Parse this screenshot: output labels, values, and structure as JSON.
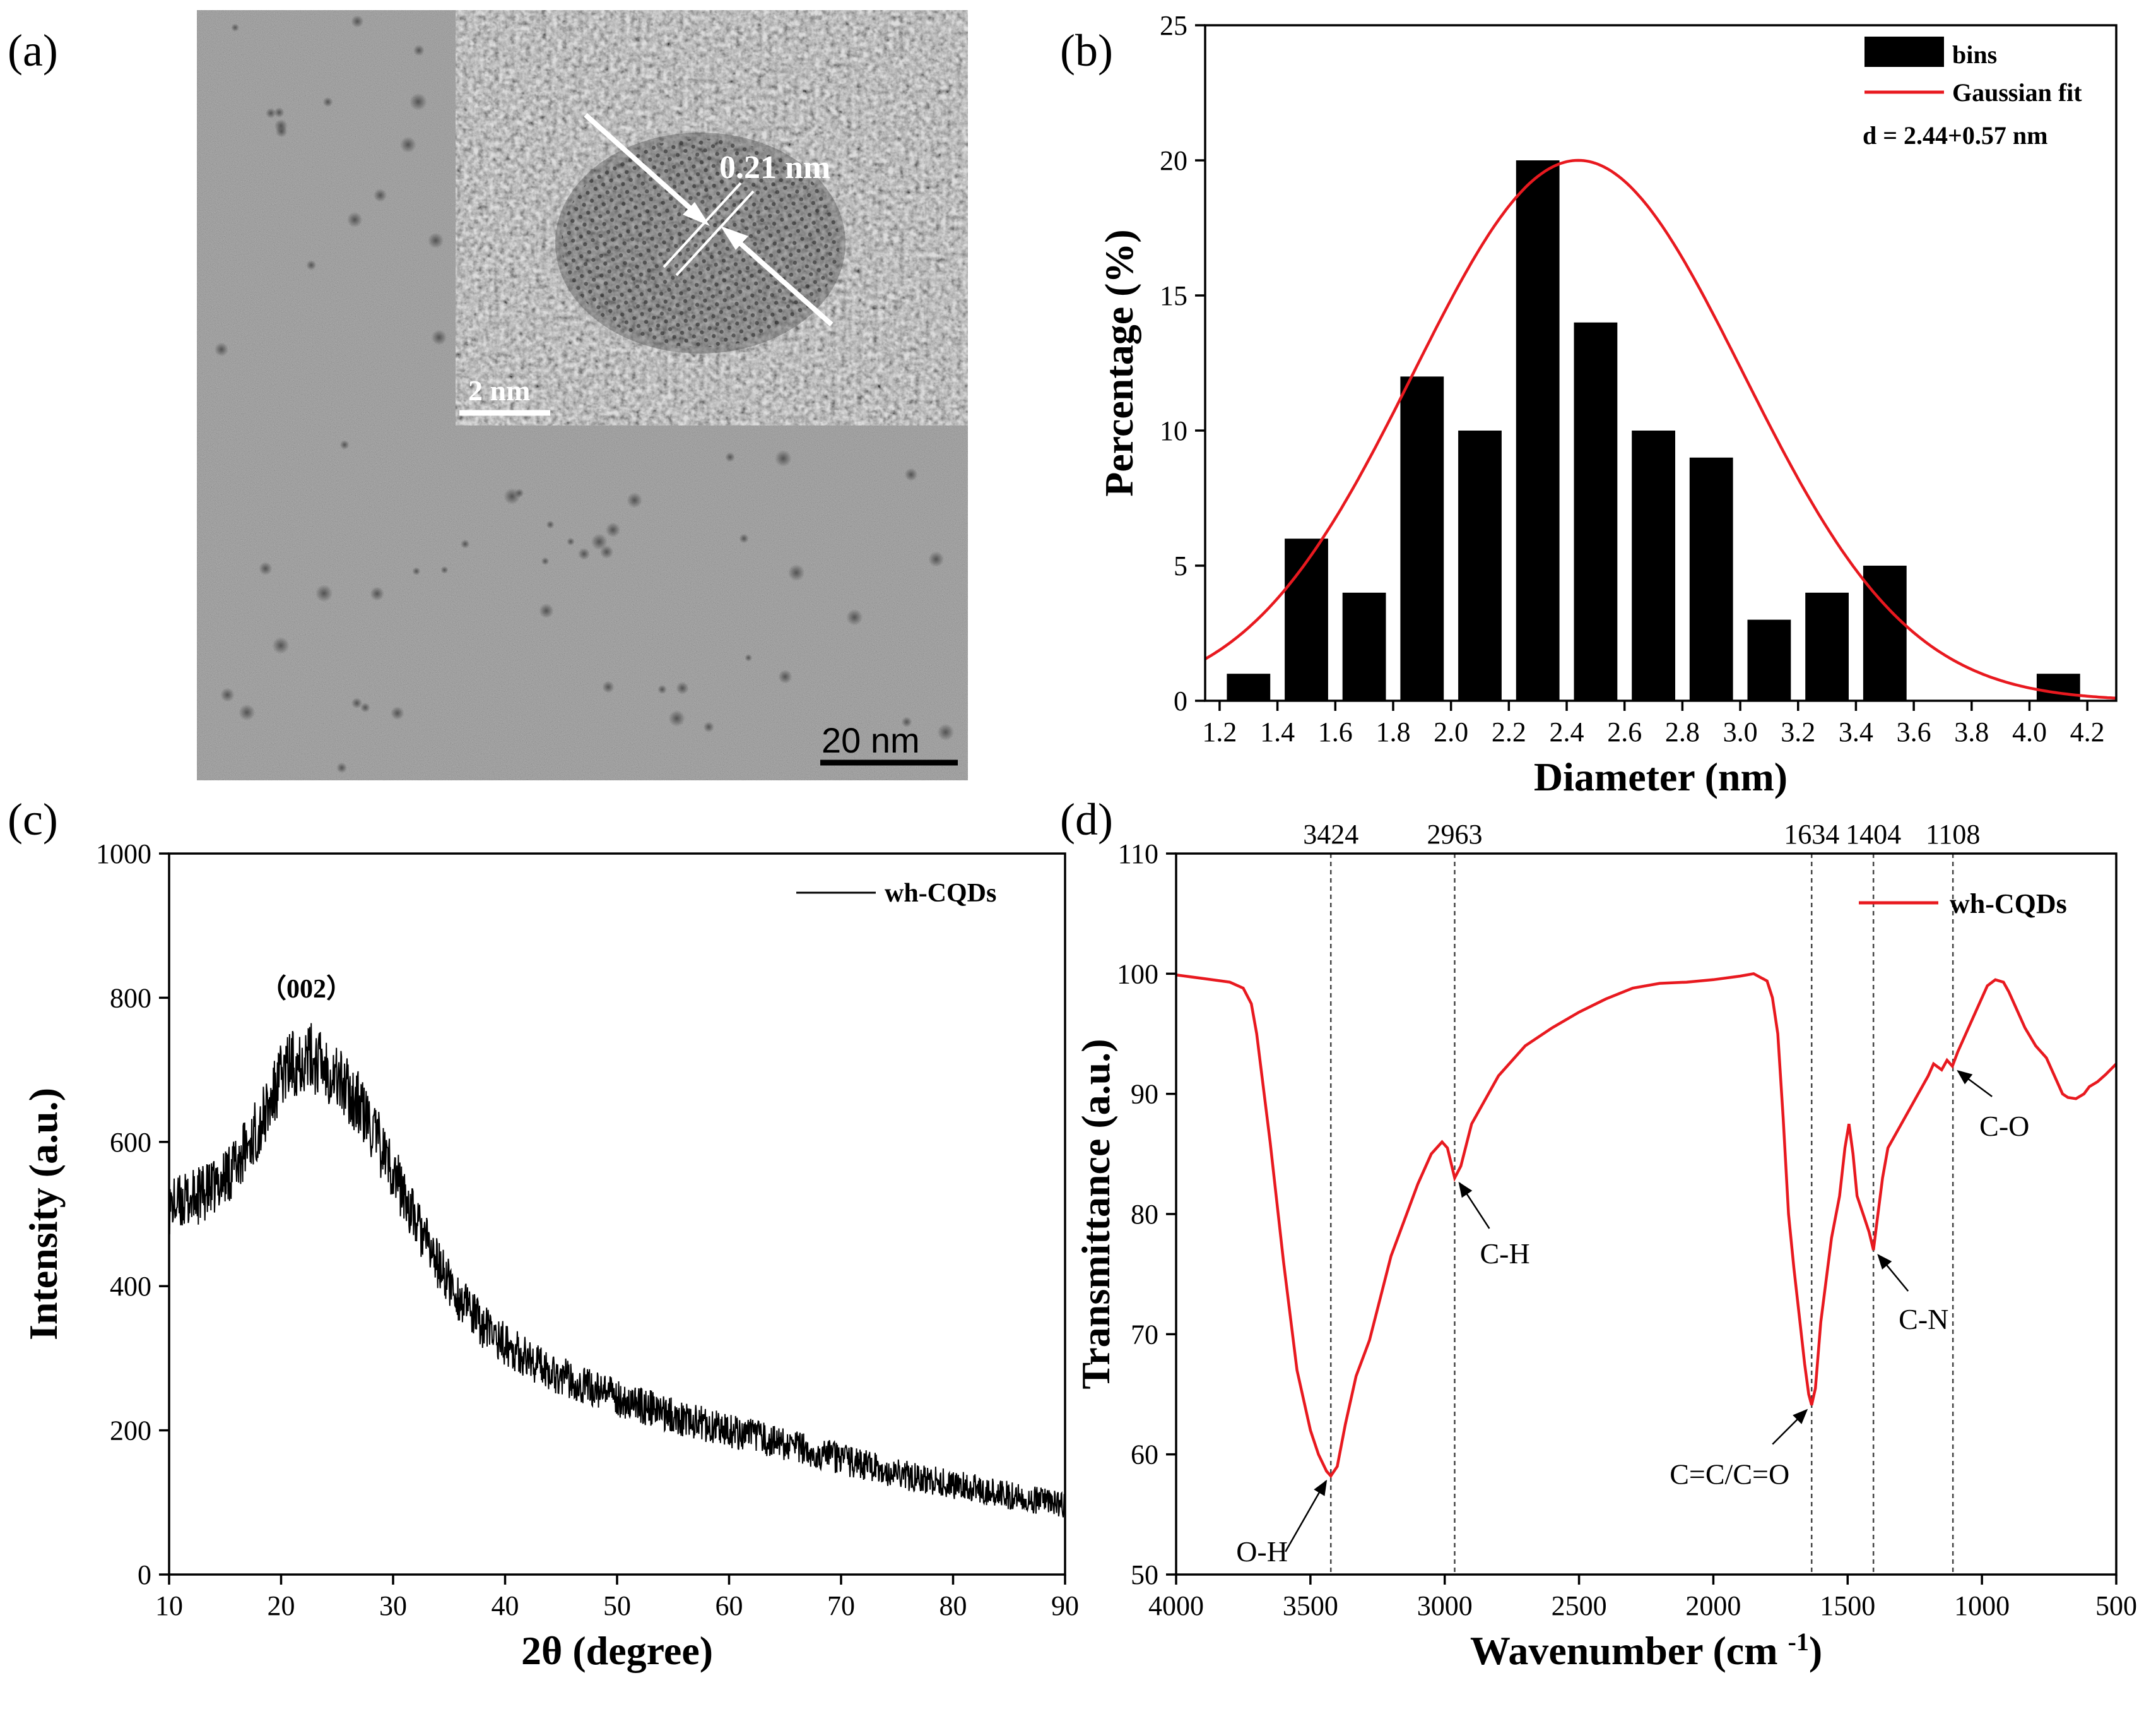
{
  "figure": {
    "panel_labels": [
      "(a)",
      "(b)",
      "(c)",
      "(d)"
    ]
  },
  "panel_a": {
    "inset_spacing_label": "0.21 nm",
    "inset_scale_label": "2  nm",
    "scale_label": "20 nm"
  },
  "colors": {
    "red": "#e8191f",
    "black": "#000000"
  },
  "chart_data": [
    {
      "panel": "b",
      "type": "bar",
      "title": "",
      "xlabel": "Diameter (nm)",
      "ylabel": "Percentage (%)",
      "xlim": [
        1.15,
        4.3
      ],
      "ylim": [
        0,
        25
      ],
      "xticks": [
        "1.2",
        "1.4",
        "1.6",
        "1.8",
        "2.0",
        "2.2",
        "2.4",
        "2.6",
        "2.8",
        "3.0",
        "3.2",
        "3.4",
        "3.6",
        "3.8",
        "4.0",
        "4.2"
      ],
      "yticks": [
        "0",
        "5",
        "10",
        "15",
        "20",
        "25"
      ],
      "bar_width": 0.15,
      "centers": [
        1.3,
        1.5,
        1.7,
        1.9,
        2.1,
        2.3,
        2.5,
        2.7,
        2.9,
        3.1,
        3.3,
        3.5,
        4.1
      ],
      "values": [
        1,
        6,
        4,
        12,
        10,
        20,
        14,
        10,
        9,
        3,
        4,
        5,
        1
      ],
      "fit": {
        "type": "gaussian",
        "mean": 2.44,
        "sigma": 0.57,
        "amplitude": 20
      },
      "legend": {
        "bars_label": "bins",
        "fit_label": "Gaussian fit",
        "note": "d = 2.44+0.57 nm",
        "position": "top-right"
      }
    },
    {
      "panel": "c",
      "type": "line",
      "title": "",
      "xlabel": "2θ (degree)",
      "ylabel": "Intensity (a.u.)",
      "xlim": [
        10,
        90
      ],
      "ylim": [
        0,
        1000
      ],
      "xticks": [
        "10",
        "20",
        "30",
        "40",
        "50",
        "60",
        "70",
        "80",
        "90"
      ],
      "yticks": [
        "0",
        "200",
        "400",
        "600",
        "800",
        "1000"
      ],
      "series": [
        {
          "name": "wh-CQDs",
          "x": [
            10,
            12,
            14,
            16,
            18,
            19,
            20,
            21,
            22,
            23,
            24,
            25,
            26,
            27,
            28,
            30,
            32,
            34,
            36,
            38,
            40,
            42,
            45,
            50,
            55,
            60,
            65,
            70,
            75,
            80,
            85,
            90
          ],
          "y": [
            510,
            520,
            535,
            570,
            620,
            650,
            690,
            710,
            718,
            715,
            705,
            690,
            670,
            650,
            620,
            560,
            490,
            430,
            380,
            345,
            320,
            300,
            275,
            245,
            220,
            200,
            180,
            160,
            140,
            125,
            110,
            95
          ]
        }
      ],
      "annotations": [
        {
          "text": "（002）",
          "x": 22,
          "y": 780
        }
      ],
      "legend": {
        "position": "top-right"
      }
    },
    {
      "panel": "d",
      "type": "line",
      "title": "",
      "xlabel": "Wavenumber (cm",
      "xlabel_sup": "-1",
      "xlabel_end": ")",
      "ylabel": "Transmittance (a.u.)",
      "xlim": [
        4000,
        500
      ],
      "ylim": [
        50,
        110
      ],
      "xticks": [
        "4000",
        "3500",
        "3000",
        "2500",
        "2000",
        "1500",
        "1000",
        "500"
      ],
      "yticks": [
        "50",
        "60",
        "70",
        "80",
        "90",
        "100",
        "110"
      ],
      "series": [
        {
          "name": "wh-CQDs",
          "x": [
            4000,
            3900,
            3800,
            3750,
            3720,
            3700,
            3650,
            3600,
            3550,
            3500,
            3470,
            3440,
            3424,
            3400,
            3370,
            3330,
            3280,
            3200,
            3100,
            3050,
            3010,
            2990,
            2963,
            2940,
            2900,
            2850,
            2800,
            2700,
            2600,
            2500,
            2400,
            2300,
            2200,
            2100,
            2000,
            1900,
            1850,
            1800,
            1780,
            1760,
            1740,
            1720,
            1700,
            1680,
            1660,
            1645,
            1634,
            1620,
            1600,
            1560,
            1530,
            1510,
            1495,
            1480,
            1465,
            1450,
            1435,
            1420,
            1404,
            1390,
            1370,
            1350,
            1300,
            1250,
            1200,
            1180,
            1150,
            1130,
            1110,
            1090,
            1060,
            1020,
            980,
            950,
            920,
            900,
            870,
            840,
            800,
            760,
            720,
            700,
            680,
            650,
            620,
            600,
            570,
            540,
            500
          ],
          "y": [
            99.9,
            99.6,
            99.3,
            98.8,
            97.5,
            95.0,
            86.0,
            76.0,
            67.0,
            62.0,
            60.0,
            58.6,
            58.2,
            59.0,
            62.5,
            66.5,
            69.5,
            76.5,
            82.5,
            85.0,
            86.0,
            85.5,
            83.0,
            84.0,
            87.5,
            89.5,
            91.5,
            94.0,
            95.5,
            96.8,
            97.9,
            98.8,
            99.2,
            99.3,
            99.5,
            99.8,
            100.0,
            99.4,
            98.0,
            95.0,
            88.0,
            80.0,
            75.5,
            71.5,
            67.5,
            65.0,
            64.1,
            65.5,
            71.0,
            78.0,
            81.5,
            85.5,
            87.5,
            85.0,
            81.5,
            80.5,
            79.5,
            78.5,
            77.0,
            79.5,
            83.0,
            85.5,
            87.5,
            89.5,
            91.5,
            92.5,
            92.0,
            92.8,
            92.3,
            93.5,
            95.0,
            97.0,
            99.0,
            99.5,
            99.3,
            98.5,
            97.0,
            95.5,
            94.0,
            93.0,
            91.0,
            90.0,
            89.7,
            89.6,
            90.0,
            90.6,
            91.0,
            91.6,
            92.5
          ]
        }
      ],
      "reference_lines": [
        3424,
        2963,
        1634,
        1404,
        1108
      ],
      "reference_labels": [
        "3424",
        "2963",
        "1634",
        "1404",
        "1108"
      ],
      "annotations": [
        {
          "text": "O-H",
          "x": 3424,
          "y": 58.2
        },
        {
          "text": "C-H",
          "x": 2963,
          "y": 83.0
        },
        {
          "text": "C=C/C=O",
          "x": 1634,
          "y": 64.1
        },
        {
          "text": "C-N",
          "x": 1404,
          "y": 77.0
        },
        {
          "text": "C-O",
          "x": 1108,
          "y": 92.3
        }
      ],
      "legend": {
        "position": "top-right"
      }
    }
  ]
}
